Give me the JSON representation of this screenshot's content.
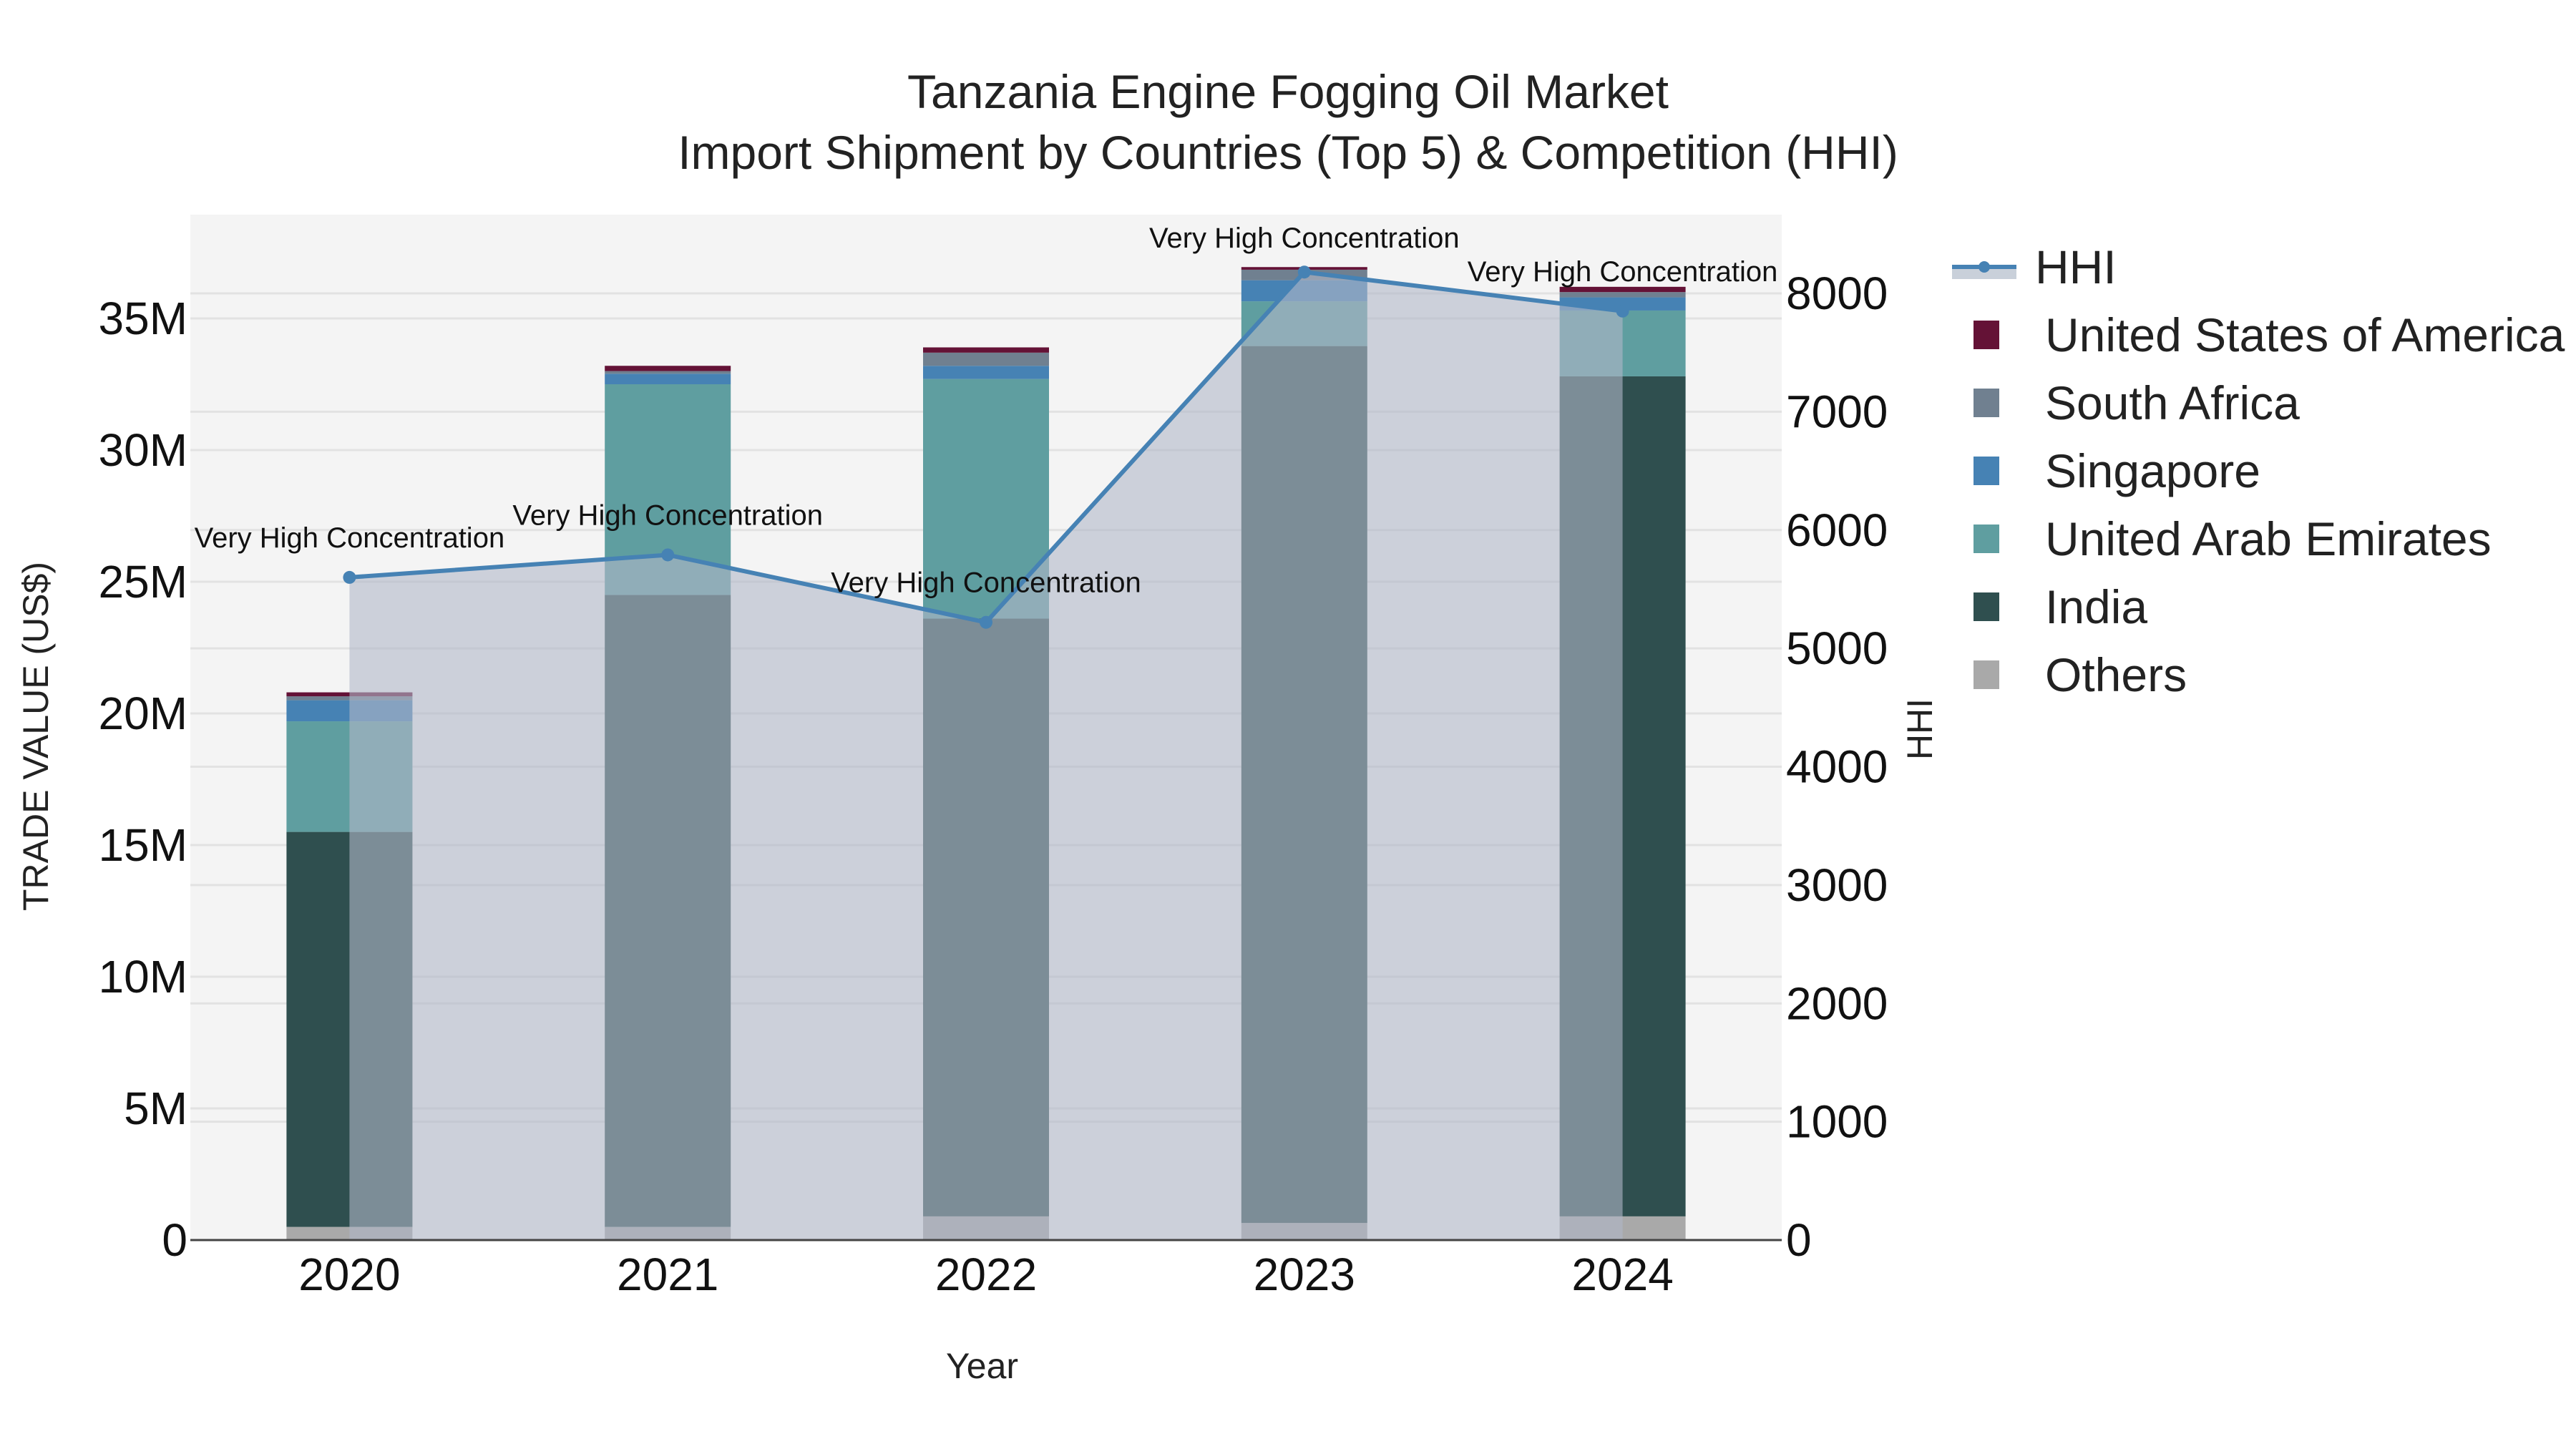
{
  "title": {
    "line1": "Tanzania Engine Fogging Oil Market",
    "line2": "Import Shipment by Countries (Top 5) & Competition (HHI)"
  },
  "axes": {
    "xlabel": "Year",
    "ylabel": "TRADE VALUE (US$)",
    "y2label": "HHI",
    "yticks": [
      "0",
      "5M",
      "10M",
      "15M",
      "20M",
      "25M",
      "30M",
      "35M"
    ],
    "y2ticks": [
      "0",
      "1000",
      "2000",
      "3000",
      "4000",
      "5000",
      "6000",
      "7000",
      "8000"
    ]
  },
  "legend": [
    {
      "label": "HHI",
      "color": "#4682B4"
    },
    {
      "label": "United States of America",
      "color": "#641236"
    },
    {
      "label": "South Africa",
      "color": "#708090"
    },
    {
      "label": "Singapore",
      "color": "#4682B4"
    },
    {
      "label": "United Arab Emirates",
      "color": "#5F9EA0"
    },
    {
      "label": "India",
      "color": "#2F4F4F"
    },
    {
      "label": "Others",
      "color": "#A9A9A9"
    }
  ],
  "chart_data": {
    "type": "bar",
    "title": "Tanzania Engine Fogging Oil Market — Import Shipment by Countries (Top 5) & Competition (HHI)",
    "xlabel": "Year",
    "ylabel": "TRADE VALUE (US$)",
    "y2label": "HHI",
    "ylim": [
      0,
      38800000
    ],
    "y2lim": [
      0,
      8650
    ],
    "stacked": true,
    "categories": [
      "2020",
      "2021",
      "2022",
      "2023",
      "2024"
    ],
    "series": [
      {
        "name": "Others",
        "color": "#A9A9A9",
        "values": [
          500000,
          500000,
          900000,
          650000,
          900000
        ]
      },
      {
        "name": "India",
        "color": "#2F4F4F",
        "values": [
          15000000,
          24000000,
          22700000,
          33300000,
          31900000
        ]
      },
      {
        "name": "United Arab Emirates",
        "color": "#5F9EA0",
        "values": [
          4200000,
          8000000,
          9100000,
          1700000,
          2500000
        ]
      },
      {
        "name": "Singapore",
        "color": "#4682B4",
        "values": [
          800000,
          400000,
          500000,
          800000,
          500000
        ]
      },
      {
        "name": "South Africa",
        "color": "#708090",
        "values": [
          150000,
          100000,
          500000,
          400000,
          200000
        ]
      },
      {
        "name": "United States of America",
        "color": "#641236",
        "values": [
          150000,
          200000,
          200000,
          100000,
          200000
        ]
      }
    ],
    "line_series": {
      "name": "HHI",
      "axis": "y2",
      "color": "#4682B4",
      "values": [
        5600,
        5790,
        5220,
        8180,
        7850
      ],
      "annotations": [
        "Very High Concentration",
        "Very High Concentration",
        "Very High Concentration",
        "Very High Concentration",
        "Very High Concentration"
      ]
    },
    "grid": true,
    "legend_position": "right"
  }
}
